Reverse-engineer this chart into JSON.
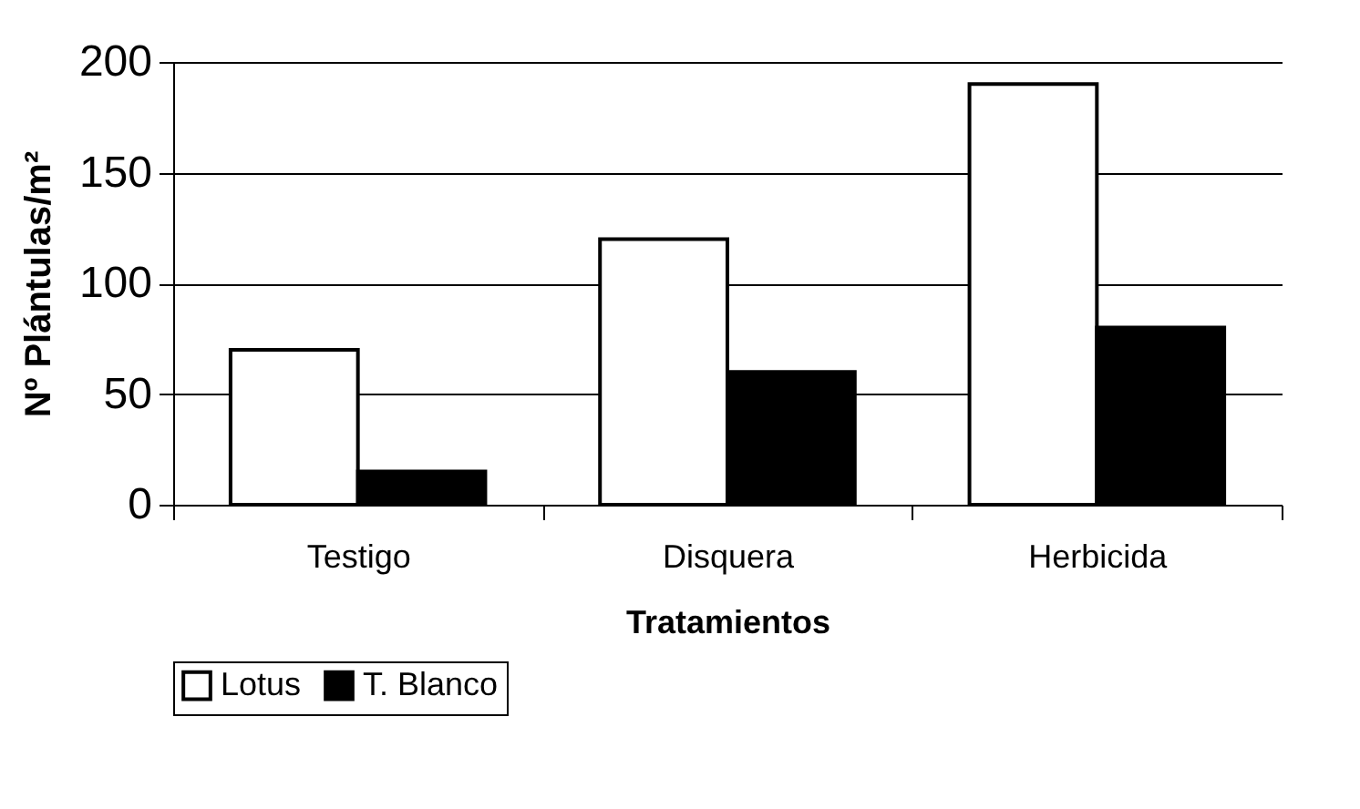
{
  "chart_data": {
    "type": "bar",
    "xlabel": "Tratamientos",
    "ylabel": "Nº Plántulas/m²",
    "categories": [
      "Testigo",
      "Disquera",
      "Herbicida"
    ],
    "series": [
      {
        "name": "Lotus",
        "color": "#ffffff",
        "values": [
          70,
          120,
          190
        ]
      },
      {
        "name": "T. Blanco",
        "color": "#000000",
        "values": [
          15,
          60,
          80
        ]
      }
    ],
    "ylim": [
      0,
      200
    ],
    "yticks": [
      0,
      50,
      100,
      150,
      200
    ],
    "grid": "y",
    "legend": "bottom"
  }
}
